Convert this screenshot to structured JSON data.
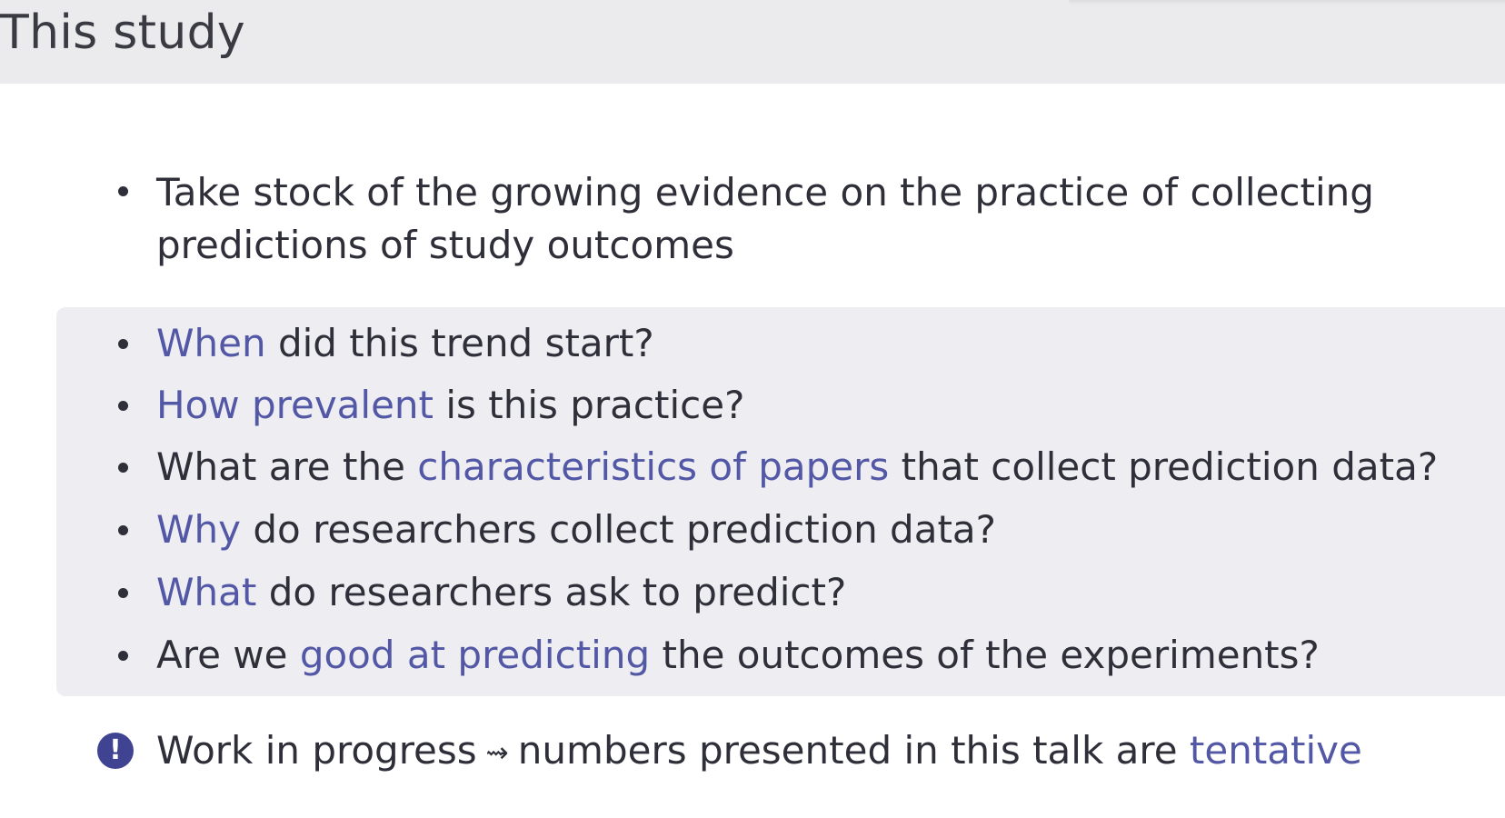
{
  "slide": {
    "title": "This study"
  },
  "intro": {
    "line1": "Take stock of the growing evidence on the practice of collecting",
    "line2": "predictions of study outcomes"
  },
  "questions": [
    {
      "pre": "",
      "accent": "When",
      "post": " did this trend start?"
    },
    {
      "pre": "",
      "accent": "How prevalent",
      "post": " is this practice?"
    },
    {
      "pre": "What are the ",
      "accent": "characteristics of papers",
      "post": " that collect prediction data?"
    },
    {
      "pre": "",
      "accent": "Why",
      "post": " do researchers collect prediction data?"
    },
    {
      "pre": "",
      "accent": "What",
      "post": " do researchers ask to predict?"
    },
    {
      "pre": "Are we ",
      "accent": "good at predicting",
      "post": " the outcomes of the experiments?"
    }
  ],
  "note": {
    "icon": "!",
    "icon_name": "exclamation-circle-icon",
    "pre": "Work in progress",
    "arrow": "⇝",
    "mid": "numbers presented in this talk are ",
    "accent": "tentative"
  },
  "colors": {
    "accent": "#5257a6",
    "text": "#2f2f3a",
    "title_bar": "#ebebed",
    "questions_box": "#eeedf1",
    "icon": "#3f4392"
  }
}
